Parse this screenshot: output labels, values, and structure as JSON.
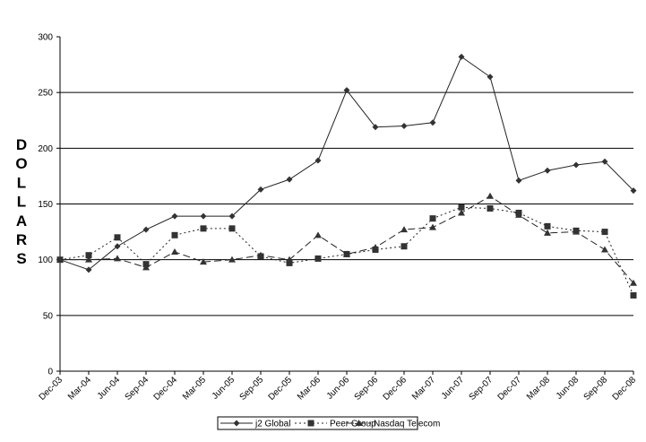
{
  "chart_data": {
    "type": "line",
    "title": "",
    "xlabel": "",
    "ylabel": "DOLLARS",
    "ylim": [
      0,
      300
    ],
    "yticks": [
      0,
      50,
      100,
      150,
      200,
      250,
      300
    ],
    "grid": {
      "horizontal": true,
      "vertical": false
    },
    "legend_position": "bottom",
    "categories": [
      "Dec-03",
      "Mar-04",
      "Jun-04",
      "Sep-04",
      "Dec-04",
      "Mar-05",
      "Jun-05",
      "Sep-05",
      "Dec-05",
      "Mar-06",
      "Jun-06",
      "Sep-06",
      "Dec-06",
      "Mar-07",
      "Jun-07",
      "Sep-07",
      "Dec-07",
      "Mar-08",
      "Jun-08",
      "Sep-08",
      "Dec-08"
    ],
    "series": [
      {
        "name": "j2 Global",
        "marker": "diamond",
        "line": "solid",
        "values": [
          100,
          91,
          112,
          127,
          139,
          139,
          139,
          163,
          172,
          189,
          252,
          219,
          220,
          223,
          282,
          264,
          171,
          180,
          185,
          188,
          162
        ]
      },
      {
        "name": "Peer Group",
        "marker": "square",
        "line": "dotted",
        "values": [
          100,
          104,
          120,
          96,
          122,
          128,
          128,
          103,
          97,
          101,
          105,
          109,
          112,
          137,
          147,
          146,
          142,
          130,
          126,
          125,
          68
        ]
      },
      {
        "name": "Nasdaq Telecom",
        "marker": "triangle",
        "line": "dashed",
        "values": [
          100,
          100,
          101,
          93,
          107,
          98,
          100,
          104,
          100,
          122,
          105,
          111,
          127,
          129,
          142,
          157,
          140,
          124,
          125,
          109,
          79
        ]
      }
    ]
  },
  "labels": {
    "ylabel": "DOLLARS",
    "legend": [
      "j2 Global",
      "Peer Group",
      "Nasdaq Telecom"
    ]
  }
}
